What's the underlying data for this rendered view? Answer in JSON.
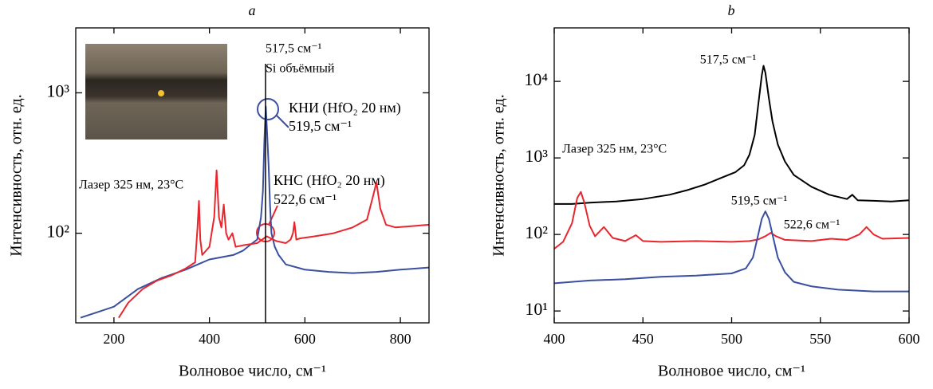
{
  "chart_data": [
    {
      "type": "line",
      "title": "a",
      "xlabel": "Волновое число, см⁻¹",
      "ylabel": "Интенсивность, отн. ед.",
      "xlim": [
        120,
        860
      ],
      "xticks": [
        200,
        400,
        600,
        800
      ],
      "ylim": [
        23,
        2900
      ],
      "log_y": true,
      "yticks": [
        {
          "value": 100,
          "label": "10²"
        },
        {
          "value": 1000,
          "label": "10³"
        }
      ],
      "vline": 517.5,
      "vline_color": "#000000",
      "annotations": [
        "517,5 см⁻¹",
        "Si объёмный",
        "519,5 см⁻¹",
        "522,6 см⁻¹",
        "Лазер 325 нм, 23°C"
      ],
      "series": [
        {
          "name": "КНИ (HfO₂ 20 нм)",
          "color": "#3a4fa0",
          "x": [
            130,
            160,
            200,
            250,
            300,
            350,
            400,
            450,
            470,
            490,
            500,
            508,
            512,
            515,
            518,
            521,
            524,
            527,
            530,
            537,
            545,
            560,
            600,
            650,
            700,
            750,
            800,
            860
          ],
          "values": [
            25,
            27,
            30,
            40,
            48,
            55,
            65,
            70,
            75,
            85,
            90,
            130,
            200,
            450,
            800,
            500,
            300,
            160,
            100,
            80,
            70,
            60,
            55,
            53,
            52,
            53,
            55,
            57
          ]
        },
        {
          "name": "КНС (HfO₂ 20 нм)",
          "color": "#e8262e",
          "x": [
            210,
            230,
            260,
            290,
            320,
            350,
            370,
            375,
            378,
            381,
            385,
            400,
            410,
            415,
            420,
            425,
            430,
            435,
            440,
            448,
            455,
            470,
            500,
            520,
            540,
            560,
            570,
            575,
            578,
            582,
            590,
            620,
            660,
            700,
            730,
            742,
            750,
            758,
            770,
            790,
            820,
            860
          ],
          "values": [
            25,
            32,
            40,
            46,
            50,
            56,
            62,
            110,
            170,
            90,
            70,
            80,
            130,
            280,
            130,
            110,
            160,
            100,
            90,
            100,
            80,
            82,
            85,
            95,
            88,
            85,
            90,
            100,
            120,
            90,
            92,
            95,
            100,
            110,
            125,
            180,
            230,
            150,
            115,
            110,
            112,
            115
          ]
        }
      ]
    },
    {
      "type": "line",
      "title": "b",
      "xlabel": "Волновое число, см⁻¹",
      "ylabel": "Интенсивность, отн. ед.",
      "xlim": [
        400,
        600
      ],
      "xticks": [
        400,
        450,
        500,
        550,
        600
      ],
      "ylim": [
        7,
        50000
      ],
      "log_y": true,
      "yticks": [
        {
          "value": 10,
          "label": "10¹"
        },
        {
          "value": 100,
          "label": "10²"
        },
        {
          "value": 1000,
          "label": "10³"
        },
        {
          "value": 10000,
          "label": "10⁴"
        }
      ],
      "annotations": [
        "517,5 см⁻¹",
        "519,5 см⁻¹",
        "522,6 см⁻¹",
        "Лазер 325 нм, 23°C"
      ],
      "series": [
        {
          "color": "#000000",
          "x": [
            400,
            410,
            420,
            435,
            450,
            465,
            475,
            485,
            495,
            502,
            507,
            510,
            513,
            515,
            517,
            518,
            519,
            521,
            523,
            526,
            530,
            535,
            545,
            555,
            565,
            568,
            571,
            580,
            590,
            600
          ],
          "values": [
            250,
            250,
            260,
            270,
            290,
            330,
            380,
            450,
            560,
            650,
            800,
            1100,
            2000,
            5000,
            12000,
            16000,
            13000,
            6000,
            3000,
            1500,
            900,
            600,
            420,
            330,
            290,
            330,
            280,
            275,
            270,
            280
          ]
        },
        {
          "color": "#e8262e",
          "x": [
            400,
            405,
            410,
            413,
            415,
            417,
            420,
            423,
            428,
            433,
            440,
            446,
            450,
            460,
            480,
            500,
            510,
            515,
            519,
            522,
            525,
            530,
            545,
            556,
            565,
            572,
            576,
            580,
            585,
            600
          ],
          "values": [
            65,
            80,
            140,
            300,
            360,
            260,
            130,
            95,
            125,
            90,
            82,
            98,
            82,
            80,
            82,
            80,
            82,
            86,
            95,
            105,
            95,
            85,
            82,
            88,
            85,
            100,
            125,
            100,
            88,
            90
          ]
        },
        {
          "color": "#3a4fa0",
          "x": [
            400,
            420,
            440,
            460,
            480,
            500,
            508,
            512,
            515,
            517,
            519,
            521,
            523,
            526,
            530,
            535,
            545,
            560,
            580,
            600
          ],
          "values": [
            23,
            25,
            26,
            28,
            29,
            31,
            36,
            50,
            100,
            160,
            200,
            160,
            100,
            50,
            32,
            24,
            21,
            19,
            18,
            18
          ]
        }
      ]
    }
  ]
}
